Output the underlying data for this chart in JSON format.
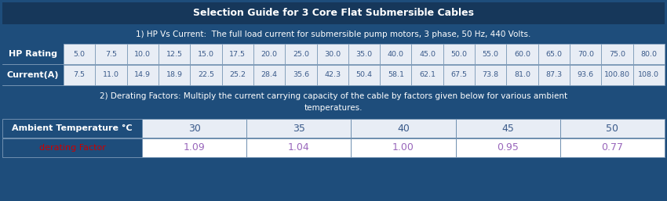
{
  "title": "Selection Guide for 3 Core Flat Submersible Cables",
  "title_bg": "#16375a",
  "title_color": "#ffffff",
  "section1_text": "1) HP Vs Current:  The full load current for submersible pump motors, 3 phase, 50 Hz, 440 Volts.",
  "section1_bg": "#1e4d7b",
  "section1_color": "#ffffff",
  "hp_label": "HP Rating",
  "current_label": "Current(A)",
  "label_bg": "#1e4d7b",
  "label_color": "#ffffff",
  "data_bg": "#e8edf5",
  "data_color": "#3a5a8a",
  "hp_values": [
    "5.0",
    "7.5",
    "10.0",
    "12.5",
    "15.0",
    "17.5",
    "20.0",
    "25.0",
    "30.0",
    "35.0",
    "40.0",
    "45.0",
    "50.0",
    "55.0",
    "60.0",
    "65.0",
    "70.0",
    "75.0",
    "80.0"
  ],
  "current_values": [
    "7.5",
    "11.0",
    "14.9",
    "18.9",
    "22.5",
    "25.2",
    "28.4",
    "35.6",
    "42.3",
    "50.4",
    "58.1",
    "62.1",
    "67.5",
    "73.8",
    "81.0",
    "87.3",
    "93.6",
    "100.80",
    "108.0"
  ],
  "section2_line1": "2) Derating Factors: Multiply the current carrying capacity of the cable by factors given below for various ambient",
  "section2_line2": "temperatures.",
  "section2_bg": "#1e4d7b",
  "section2_color": "#ffffff",
  "ambient_label": "Ambient Temperature °C",
  "derating_label": "derating Factor",
  "derating_label_color": "#cc0000",
  "ambient_temps": [
    "30",
    "35",
    "40",
    "45",
    "50"
  ],
  "derating_factors": [
    "1.09",
    "1.04",
    "1.00",
    "0.95",
    "0.77"
  ],
  "derating_color": "#9966bb",
  "derating_bg": "#ffffff",
  "ambient_bg": "#1e4d7b",
  "ambient_color": "#ffffff",
  "border_color": "#7090b0",
  "fig_bg": "#1e4d7b",
  "outer_border": "#5a80a8",
  "gap_color": "#1e4d7b"
}
